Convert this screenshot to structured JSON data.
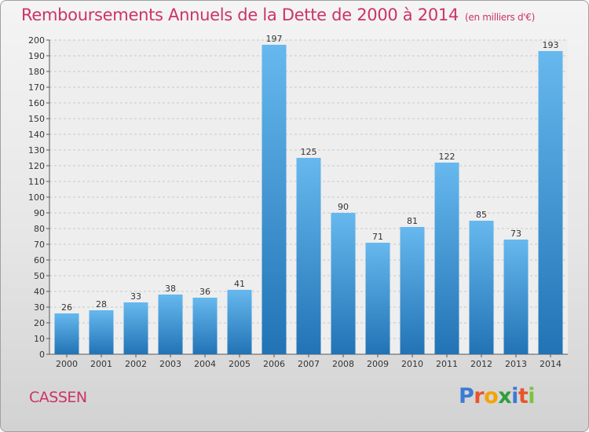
{
  "title": "Remboursements Annuels de la Dette de 2000 à 2014",
  "unit": "(en milliers d'€)",
  "commune": "CASSEN",
  "logo": {
    "letters": [
      "P",
      "r",
      "o",
      "x",
      "i",
      "t",
      "i"
    ],
    "colors": [
      "#3a7bd5",
      "#e8552a",
      "#f4a300",
      "#2e9e3e",
      "#3a7bd5",
      "#e8552a",
      "#7cc242"
    ]
  },
  "colors": {
    "bar_top": "#66b8ee",
    "bar_bottom": "#2273b5",
    "title": "#cc3366"
  },
  "chart_data": {
    "type": "bar",
    "title": "Remboursements Annuels de la Dette de 2000 à 2014",
    "subtitle": "(en milliers d'€)",
    "categories": [
      "2000",
      "2001",
      "2002",
      "2003",
      "2004",
      "2005",
      "2006",
      "2007",
      "2008",
      "2009",
      "2010",
      "2011",
      "2012",
      "2013",
      "2014"
    ],
    "values": [
      26,
      28,
      33,
      38,
      36,
      41,
      197,
      125,
      90,
      71,
      81,
      122,
      85,
      73,
      193
    ],
    "ylim": [
      0,
      200
    ],
    "ytick_step": 10,
    "grid": true,
    "data_labels": true
  }
}
